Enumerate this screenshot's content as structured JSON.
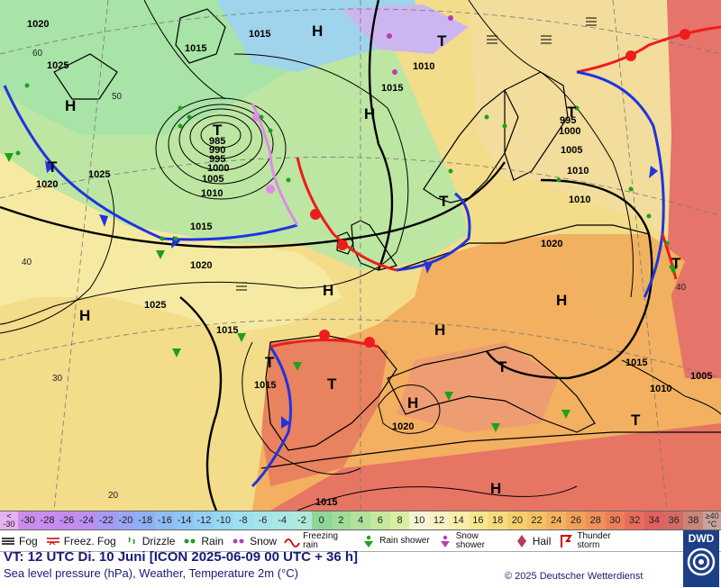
{
  "map": {
    "pressure_labels": [
      "1020",
      "1015",
      "1025",
      "1015",
      "1025",
      "1020",
      "1015",
      "1010",
      "1005",
      "1000",
      "995",
      "990",
      "985",
      "1020",
      "1015",
      "1025",
      "1020",
      "1015",
      "1015",
      "1010",
      "1005",
      "1000",
      "995",
      "1010",
      "1005",
      "1010",
      "1015",
      "1020",
      "1015",
      "1010",
      "1005",
      "1015",
      "1020",
      "1015"
    ],
    "pressure_centers": [
      "H",
      "H",
      "H",
      "H",
      "H",
      "H",
      "H",
      "H",
      "H",
      "T",
      "T",
      "T",
      "T",
      "T",
      "T",
      "T",
      "T",
      "T",
      "T"
    ],
    "latitude_labels": [
      "60",
      "50",
      "40",
      "40",
      "30",
      "20"
    ],
    "colors": {
      "ocean_warm": "#f5df8c",
      "ocean_cool": "#a6e3a8",
      "land_hot": "#e8705f",
      "land_warm": "#f29a55",
      "snow_cold": "#d8b9f3",
      "sea_cold": "#9cc9f2",
      "cold_front": "#1f34e0",
      "warm_front": "#ee1c1c",
      "occlusion": "#e08ae8",
      "isobar": "#000000",
      "rain_symbol": "#1aa31a"
    }
  },
  "scale": {
    "low_label": "< -30",
    "cells": [
      {
        "label": "-30",
        "color": "#c88ee8"
      },
      {
        "label": "-28",
        "color": "#c98df0"
      },
      {
        "label": "-26",
        "color": "#c38cf0"
      },
      {
        "label": "-24",
        "color": "#bc8ff0"
      },
      {
        "label": "-22",
        "color": "#a79af2"
      },
      {
        "label": "-20",
        "color": "#9aa6f2"
      },
      {
        "label": "-18",
        "color": "#90b0f4"
      },
      {
        "label": "-16",
        "color": "#8fbdf4"
      },
      {
        "label": "-14",
        "color": "#90c6f4"
      },
      {
        "label": "-12",
        "color": "#94d0f4"
      },
      {
        "label": "-10",
        "color": "#9ad8f2"
      },
      {
        "label": "-8",
        "color": "#9fdff0"
      },
      {
        "label": "-6",
        "color": "#a4e4ea"
      },
      {
        "label": "-4",
        "color": "#a9e7e2"
      },
      {
        "label": "-2",
        "color": "#aee9da"
      },
      {
        "label": "0",
        "color": "#8ed69a"
      },
      {
        "label": "2",
        "color": "#9fdc98"
      },
      {
        "label": "4",
        "color": "#b0e29c"
      },
      {
        "label": "6",
        "color": "#c4e89e"
      },
      {
        "label": "8",
        "color": "#d8eea2"
      },
      {
        "label": "10",
        "color": "#f6f4d6"
      },
      {
        "label": "12",
        "color": "#f8f2c4"
      },
      {
        "label": "14",
        "color": "#f9eeaa"
      },
      {
        "label": "16",
        "color": "#f8e78f"
      },
      {
        "label": "18",
        "color": "#f6dc7e"
      },
      {
        "label": "20",
        "color": "#f5d06e"
      },
      {
        "label": "22",
        "color": "#f4c265"
      },
      {
        "label": "24",
        "color": "#f3b35e"
      },
      {
        "label": "26",
        "color": "#f1a25a"
      },
      {
        "label": "28",
        "color": "#ef9159"
      },
      {
        "label": "30",
        "color": "#ec7f5a"
      },
      {
        "label": "32",
        "color": "#e86d5c"
      },
      {
        "label": "34",
        "color": "#e0615e"
      },
      {
        "label": "36",
        "color": "#d66a66"
      },
      {
        "label": "38",
        "color": "#c98577"
      }
    ],
    "high_label": "≥40 °C"
  },
  "legend": {
    "items": [
      {
        "name": "fog",
        "label": "Fog",
        "icon": "fog-icon"
      },
      {
        "name": "freezing-fog",
        "label": "Freez. Fog",
        "icon": "freezing-fog-icon"
      },
      {
        "name": "drizzle",
        "label": "Drizzle",
        "icon": "drizzle-icon"
      },
      {
        "name": "rain",
        "label": "Rain",
        "icon": "rain-icon"
      },
      {
        "name": "snow",
        "label": "Snow",
        "icon": "snow-icon"
      },
      {
        "name": "freezing-rain",
        "label": "Freezing rain",
        "icon": "freezing-rain-icon"
      },
      {
        "name": "rain-shower",
        "label": "Rain shower",
        "icon": "rain-shower-icon"
      },
      {
        "name": "snow-shower",
        "label": "Snow shower",
        "icon": "snow-shower-icon"
      },
      {
        "name": "hail",
        "label": "Hail",
        "icon": "hail-icon"
      },
      {
        "name": "thunderstorm",
        "label": "Thunder storm",
        "icon": "thunderstorm-icon"
      }
    ]
  },
  "footer": {
    "valid_time": "VT: 12 UTC Di.  10 Juni [ICON 2025-06-09  00 UTC + 36 h]",
    "subtitle": "Sea level pressure (hPa), Weather, Temperature 2m (°C)",
    "copyright": "© 2025 Deutscher Wetterdienst",
    "logo_text": "DWD"
  }
}
